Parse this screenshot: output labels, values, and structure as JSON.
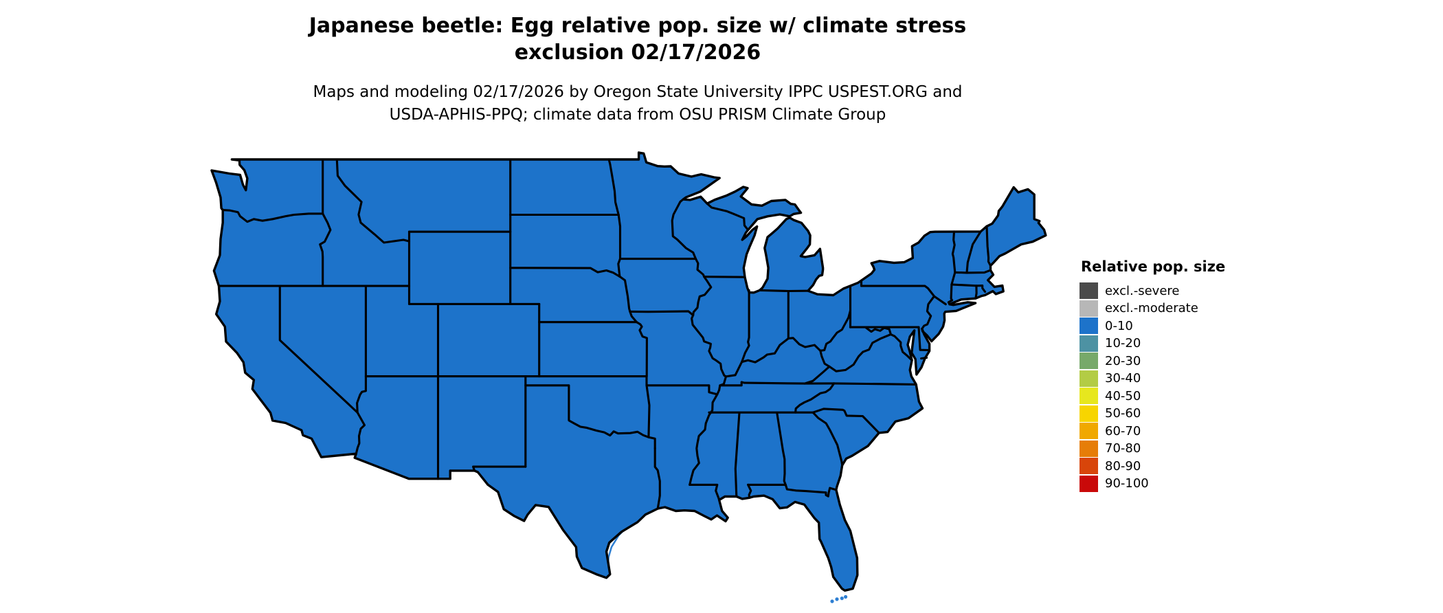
{
  "title": {
    "line1": "Japanese beetle: Egg relative pop. size w/ climate stress",
    "line2": "exclusion 02/17/2026"
  },
  "subtitle": {
    "line1": "Maps and modeling 02/17/2026 by Oregon State University IPPC USPEST.ORG and",
    "line2": "USDA-APHIS-PPQ; climate data from OSU PRISM Climate Group"
  },
  "legend": {
    "title": "Relative pop. size",
    "items": [
      {
        "label": "excl.-severe",
        "color": "#4b4b4b"
      },
      {
        "label": "excl.-moderate",
        "color": "#b7b7b7"
      },
      {
        "label": "0-10",
        "color": "#1d73ca"
      },
      {
        "label": "10-20",
        "color": "#4d92a3"
      },
      {
        "label": "20-30",
        "color": "#77a96a"
      },
      {
        "label": "30-40",
        "color": "#b3cc45"
      },
      {
        "label": "40-50",
        "color": "#e7e71e"
      },
      {
        "label": "50-60",
        "color": "#f7d500"
      },
      {
        "label": "60-70",
        "color": "#f0a800"
      },
      {
        "label": "70-80",
        "color": "#e67d08"
      },
      {
        "label": "80-90",
        "color": "#d8450a"
      },
      {
        "label": "90-100",
        "color": "#c90909"
      }
    ]
  },
  "map": {
    "type": "choropleth",
    "region": "Contiguous United States with state boundaries",
    "uniform_class": "0-10",
    "fill_color": "#1d73ca",
    "border_color": "#000000",
    "background_color": "#ffffff",
    "note": "Entire contiguous US shown in the 0-10 relative population size class"
  }
}
